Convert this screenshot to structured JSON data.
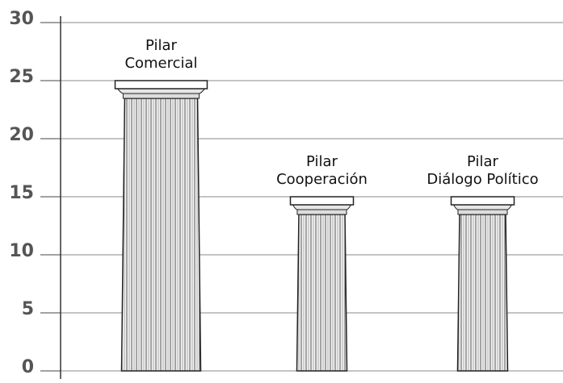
{
  "chart_data": {
    "type": "bar",
    "categories": [
      "Pilar\nComercial",
      "Pilar\nCooperación",
      "Pilar\nDiálogo Político"
    ],
    "values": [
      25,
      15,
      15
    ],
    "ylim": [
      0,
      30
    ],
    "yticks": [
      0,
      5,
      10,
      15,
      20,
      25,
      30
    ],
    "grid": true
  }
}
